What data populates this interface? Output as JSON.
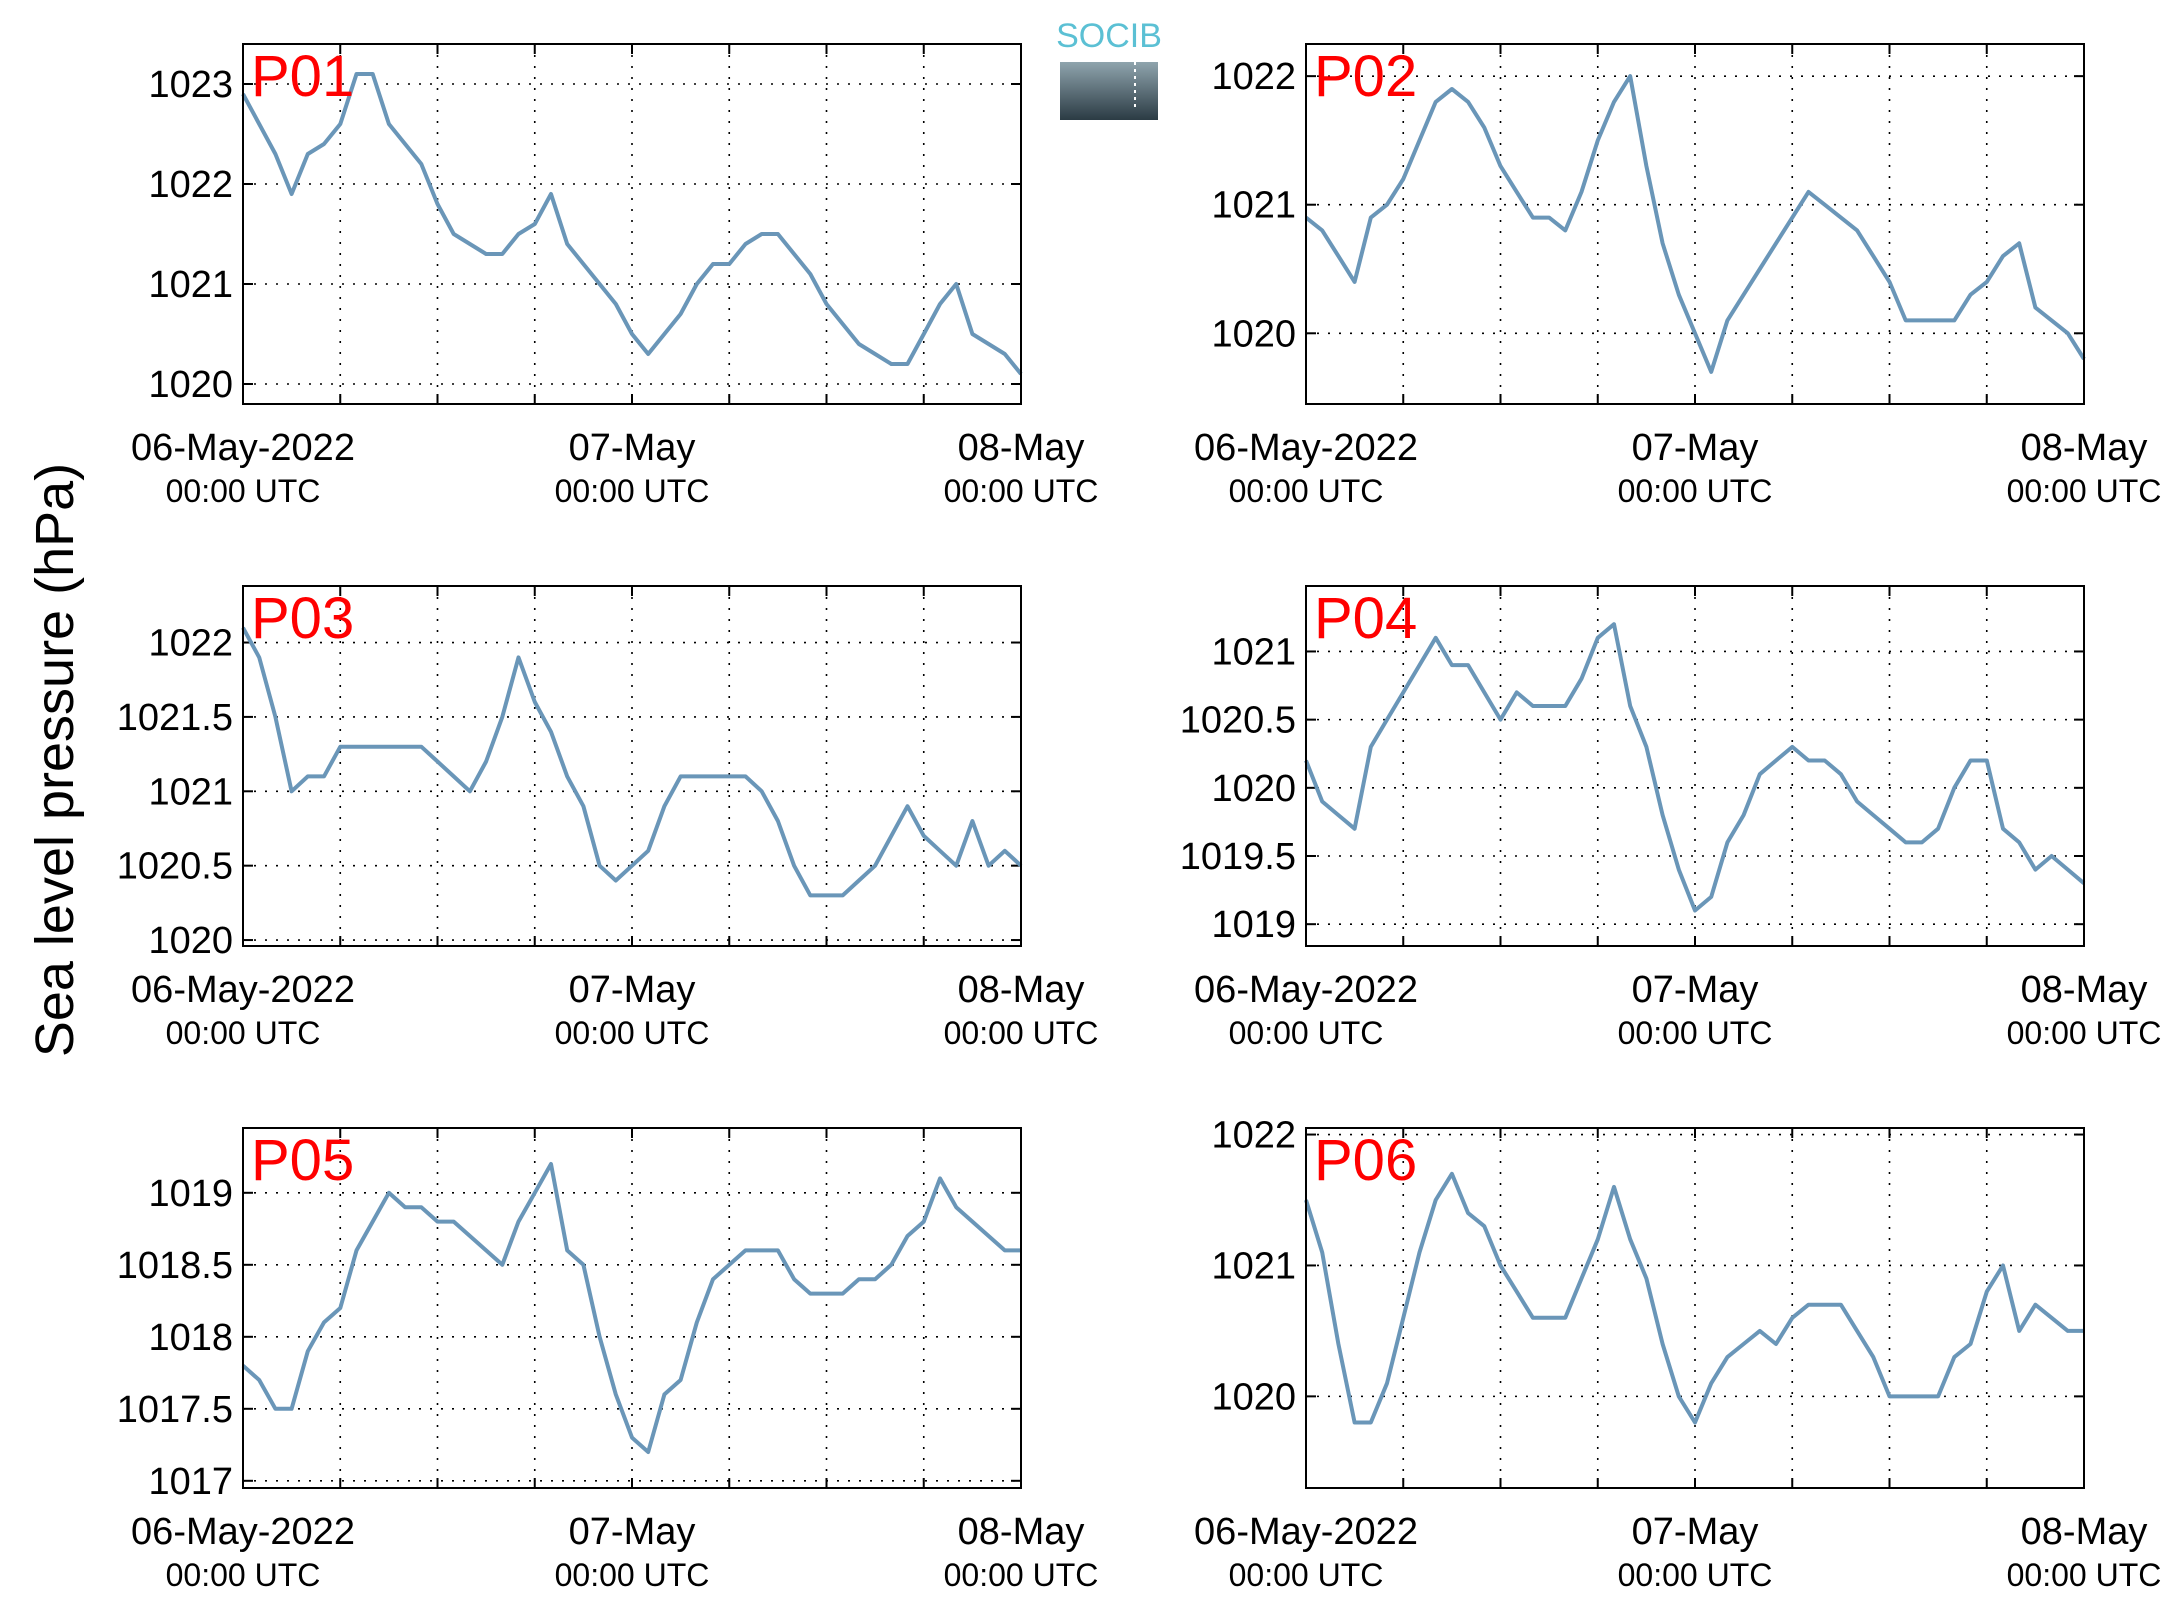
{
  "ylabel": "Sea level pressure (hPa)",
  "logo": {
    "text": "SOCIB",
    "color": "#5bc0d4"
  },
  "colors": {
    "line": "#6a96b8",
    "station_label": "#ff0000",
    "axis": "#000000",
    "grid": "#000000"
  },
  "x_ticks": [
    {
      "date": "06-May-2022",
      "time": "00:00 UTC"
    },
    {
      "date": "07-May",
      "time": "00:00 UTC"
    },
    {
      "date": "08-May",
      "time": "00:00 UTC"
    }
  ],
  "chart_data": [
    {
      "type": "line",
      "title": "P01",
      "x_unit": "hours since 06-May-2022 00:00 UTC",
      "xlim": [
        0,
        48
      ],
      "ylim": [
        1019.8,
        1023.4
      ],
      "yticks": [
        1020,
        1021,
        1022,
        1023
      ],
      "ytick_labels": [
        "1020",
        "1021",
        "1022",
        "1023"
      ],
      "grid": true,
      "series": [
        {
          "x": [
            0,
            1,
            2,
            3,
            4,
            5,
            6,
            7,
            8,
            9,
            10,
            11,
            12,
            13,
            14,
            15,
            16,
            17,
            18,
            19,
            20,
            21,
            22,
            23,
            24,
            25,
            26,
            27,
            28,
            29,
            30,
            31,
            32,
            33,
            34,
            35,
            36,
            37,
            38,
            39,
            40,
            41,
            42,
            43,
            44,
            45,
            46,
            47,
            48
          ],
          "values": [
            1022.9,
            1022.6,
            1022.3,
            1021.9,
            1022.3,
            1022.4,
            1022.6,
            1023.1,
            1023.1,
            1022.6,
            1022.4,
            1022.2,
            1021.8,
            1021.5,
            1021.4,
            1021.3,
            1021.3,
            1021.5,
            1021.6,
            1021.9,
            1021.4,
            1021.2,
            1021.0,
            1020.8,
            1020.5,
            1020.3,
            1020.5,
            1020.7,
            1021.0,
            1021.2,
            1021.2,
            1021.4,
            1021.5,
            1021.5,
            1021.3,
            1021.1,
            1020.8,
            1020.6,
            1020.4,
            1020.3,
            1020.2,
            1020.2,
            1020.5,
            1020.8,
            1021.0,
            1020.5,
            1020.4,
            1020.3,
            1020.1
          ]
        }
      ]
    },
    {
      "type": "line",
      "title": "P02",
      "x_unit": "hours since 06-May-2022 00:00 UTC",
      "xlim": [
        0,
        48
      ],
      "ylim": [
        1019.45,
        1022.25
      ],
      "yticks": [
        1020,
        1021,
        1022
      ],
      "ytick_labels": [
        "1020",
        "1021",
        "1022"
      ],
      "grid": true,
      "series": [
        {
          "x": [
            0,
            1,
            2,
            3,
            4,
            5,
            6,
            7,
            8,
            9,
            10,
            11,
            12,
            13,
            14,
            15,
            16,
            17,
            18,
            19,
            20,
            21,
            22,
            23,
            24,
            25,
            26,
            27,
            28,
            29,
            30,
            31,
            32,
            33,
            34,
            35,
            36,
            37,
            38,
            39,
            40,
            41,
            42,
            43,
            44,
            45,
            46,
            47,
            48
          ],
          "values": [
            1020.9,
            1020.8,
            1020.6,
            1020.4,
            1020.9,
            1021.0,
            1021.2,
            1021.5,
            1021.8,
            1021.9,
            1021.8,
            1021.6,
            1021.3,
            1021.1,
            1020.9,
            1020.9,
            1020.8,
            1021.1,
            1021.5,
            1021.8,
            1022.0,
            1021.3,
            1020.7,
            1020.3,
            1020.0,
            1019.7,
            1020.1,
            1020.3,
            1020.5,
            1020.7,
            1020.9,
            1021.1,
            1021.0,
            1020.9,
            1020.8,
            1020.6,
            1020.4,
            1020.1,
            1020.1,
            1020.1,
            1020.1,
            1020.3,
            1020.4,
            1020.6,
            1020.7,
            1020.2,
            1020.1,
            1020.0,
            1019.8
          ]
        }
      ]
    },
    {
      "type": "line",
      "title": "P03",
      "x_unit": "hours since 06-May-2022 00:00 UTC",
      "xlim": [
        0,
        48
      ],
      "ylim": [
        1019.96,
        1022.38
      ],
      "yticks": [
        1020,
        1020.5,
        1021,
        1021.5,
        1022
      ],
      "ytick_labels": [
        "1020",
        "1020.5",
        "1021",
        "1021.5",
        "1022"
      ],
      "grid": true,
      "series": [
        {
          "x": [
            0,
            1,
            2,
            3,
            4,
            5,
            6,
            7,
            8,
            9,
            10,
            11,
            12,
            13,
            14,
            15,
            16,
            17,
            18,
            19,
            20,
            21,
            22,
            23,
            24,
            25,
            26,
            27,
            28,
            29,
            30,
            31,
            32,
            33,
            34,
            35,
            36,
            37,
            38,
            39,
            40,
            41,
            42,
            43,
            44,
            45,
            46,
            47,
            48
          ],
          "values": [
            1022.1,
            1021.9,
            1021.5,
            1021.0,
            1021.1,
            1021.1,
            1021.3,
            1021.3,
            1021.3,
            1021.3,
            1021.3,
            1021.3,
            1021.2,
            1021.1,
            1021.0,
            1021.2,
            1021.5,
            1021.9,
            1021.6,
            1021.4,
            1021.1,
            1020.9,
            1020.5,
            1020.4,
            1020.5,
            1020.6,
            1020.9,
            1021.1,
            1021.1,
            1021.1,
            1021.1,
            1021.1,
            1021.0,
            1020.8,
            1020.5,
            1020.3,
            1020.3,
            1020.3,
            1020.4,
            1020.5,
            1020.7,
            1020.9,
            1020.7,
            1020.6,
            1020.5,
            1020.8,
            1020.5,
            1020.6,
            1020.5
          ]
        }
      ]
    },
    {
      "type": "line",
      "title": "P04",
      "x_unit": "hours since 06-May-2022 00:00 UTC",
      "xlim": [
        0,
        48
      ],
      "ylim": [
        1018.84,
        1021.48
      ],
      "yticks": [
        1019,
        1019.5,
        1020,
        1020.5,
        1021
      ],
      "ytick_labels": [
        "1019",
        "1019.5",
        "1020",
        "1020.5",
        "1021"
      ],
      "grid": true,
      "series": [
        {
          "x": [
            0,
            1,
            2,
            3,
            4,
            5,
            6,
            7,
            8,
            9,
            10,
            11,
            12,
            13,
            14,
            15,
            16,
            17,
            18,
            19,
            20,
            21,
            22,
            23,
            24,
            25,
            26,
            27,
            28,
            29,
            30,
            31,
            32,
            33,
            34,
            35,
            36,
            37,
            38,
            39,
            40,
            41,
            42,
            43,
            44,
            45,
            46,
            47,
            48
          ],
          "values": [
            1020.2,
            1019.9,
            1019.8,
            1019.7,
            1020.3,
            1020.5,
            1020.7,
            1020.9,
            1021.1,
            1020.9,
            1020.9,
            1020.7,
            1020.5,
            1020.7,
            1020.6,
            1020.6,
            1020.6,
            1020.8,
            1021.1,
            1021.2,
            1020.6,
            1020.3,
            1019.8,
            1019.4,
            1019.1,
            1019.2,
            1019.6,
            1019.8,
            1020.1,
            1020.2,
            1020.3,
            1020.2,
            1020.2,
            1020.1,
            1019.9,
            1019.8,
            1019.7,
            1019.6,
            1019.6,
            1019.7,
            1020.0,
            1020.2,
            1020.2,
            1019.7,
            1019.6,
            1019.4,
            1019.5,
            1019.4,
            1019.3
          ]
        }
      ]
    },
    {
      "type": "line",
      "title": "P05",
      "x_unit": "hours since 06-May-2022 00:00 UTC",
      "xlim": [
        0,
        48
      ],
      "ylim": [
        1016.95,
        1019.45
      ],
      "yticks": [
        1017,
        1017.5,
        1018,
        1018.5,
        1019
      ],
      "ytick_labels": [
        "1017",
        "1017.5",
        "1018",
        "1018.5",
        "1019"
      ],
      "grid": true,
      "series": [
        {
          "x": [
            0,
            1,
            2,
            3,
            4,
            5,
            6,
            7,
            8,
            9,
            10,
            11,
            12,
            13,
            14,
            15,
            16,
            17,
            18,
            19,
            20,
            21,
            22,
            23,
            24,
            25,
            26,
            27,
            28,
            29,
            30,
            31,
            32,
            33,
            34,
            35,
            36,
            37,
            38,
            39,
            40,
            41,
            42,
            43,
            44,
            45,
            46,
            47,
            48
          ],
          "values": [
            1017.8,
            1017.7,
            1017.5,
            1017.5,
            1017.9,
            1018.1,
            1018.2,
            1018.6,
            1018.8,
            1019.0,
            1018.9,
            1018.9,
            1018.8,
            1018.8,
            1018.7,
            1018.6,
            1018.5,
            1018.8,
            1019.0,
            1019.2,
            1018.6,
            1018.5,
            1018.0,
            1017.6,
            1017.3,
            1017.2,
            1017.6,
            1017.7,
            1018.1,
            1018.4,
            1018.5,
            1018.6,
            1018.6,
            1018.6,
            1018.4,
            1018.3,
            1018.3,
            1018.3,
            1018.4,
            1018.4,
            1018.5,
            1018.7,
            1018.8,
            1019.1,
            1018.9,
            1018.8,
            1018.7,
            1018.6,
            1018.6
          ]
        }
      ]
    },
    {
      "type": "line",
      "title": "P06",
      "x_unit": "hours since 06-May-2022 00:00 UTC",
      "xlim": [
        0,
        48
      ],
      "ylim": [
        1019.3,
        1022.05
      ],
      "yticks": [
        1020,
        1021,
        1022
      ],
      "ytick_labels": [
        "1020",
        "1021",
        "1022"
      ],
      "grid": true,
      "series": [
        {
          "x": [
            0,
            1,
            2,
            3,
            4,
            5,
            6,
            7,
            8,
            9,
            10,
            11,
            12,
            13,
            14,
            15,
            16,
            17,
            18,
            19,
            20,
            21,
            22,
            23,
            24,
            25,
            26,
            27,
            28,
            29,
            30,
            31,
            32,
            33,
            34,
            35,
            36,
            37,
            38,
            39,
            40,
            41,
            42,
            43,
            44,
            45,
            46,
            47,
            48
          ],
          "values": [
            1021.5,
            1021.1,
            1020.4,
            1019.8,
            1019.8,
            1020.1,
            1020.6,
            1021.1,
            1021.5,
            1021.7,
            1021.4,
            1021.3,
            1021.0,
            1020.8,
            1020.6,
            1020.6,
            1020.6,
            1020.9,
            1021.2,
            1021.6,
            1021.2,
            1020.9,
            1020.4,
            1020.0,
            1019.8,
            1020.1,
            1020.3,
            1020.4,
            1020.5,
            1020.4,
            1020.6,
            1020.7,
            1020.7,
            1020.7,
            1020.5,
            1020.3,
            1020.0,
            1020.0,
            1020.0,
            1020.0,
            1020.3,
            1020.4,
            1020.8,
            1021.0,
            1020.5,
            1020.7,
            1020.6,
            1020.5,
            1020.5
          ]
        }
      ]
    }
  ]
}
